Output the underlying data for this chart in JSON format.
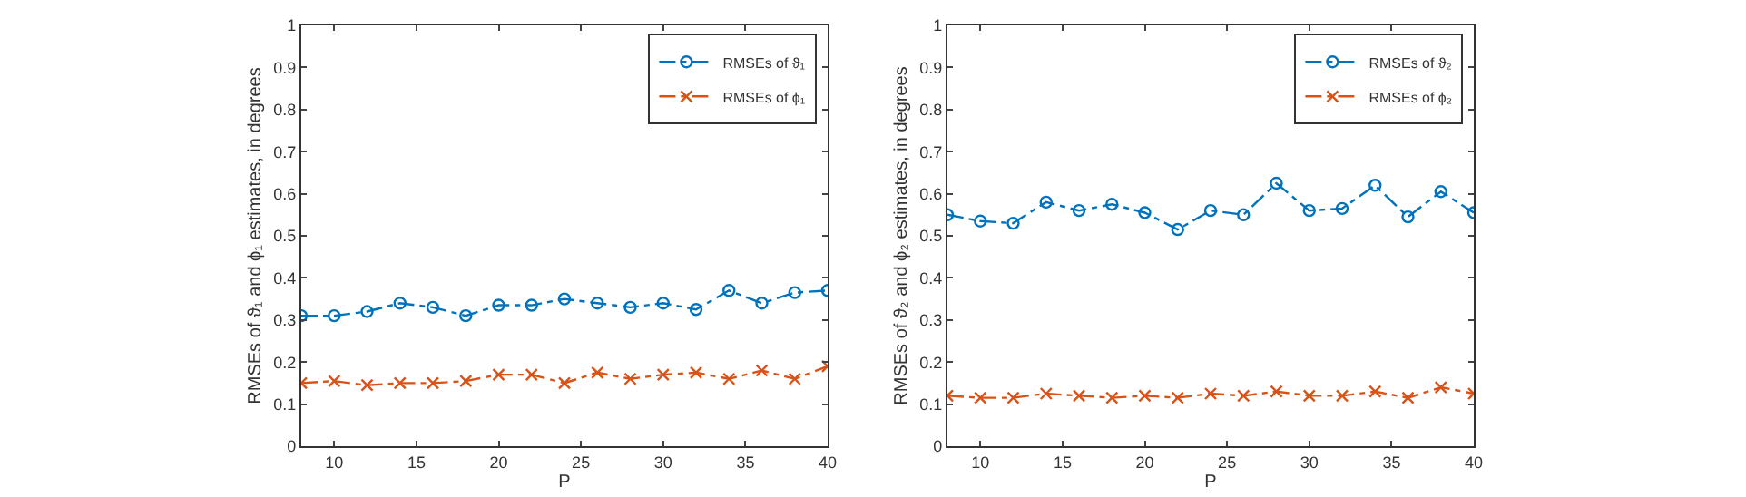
{
  "chart_data": [
    {
      "type": "line",
      "xlabel": "P",
      "ylabel": "RMSEs of ϑ₁ and ϕ₁ estimates, in degrees",
      "x": [
        8,
        10,
        12,
        14,
        16,
        18,
        20,
        22,
        24,
        26,
        28,
        30,
        32,
        34,
        36,
        38,
        40
      ],
      "xlim": [
        8,
        40
      ],
      "xticks": [
        10,
        15,
        20,
        25,
        30,
        35,
        40
      ],
      "ylim": [
        0,
        1
      ],
      "yticks": [
        0,
        0.1,
        0.2,
        0.3,
        0.4,
        0.5,
        0.6,
        0.7,
        0.8,
        0.9,
        1
      ],
      "grid": false,
      "legend": "top right",
      "line_style": "dashdot",
      "series": [
        {
          "name": "RMSEs of ϑ₁",
          "color": "#0072bd",
          "marker": "circle",
          "values": [
            0.31,
            0.31,
            0.32,
            0.34,
            0.33,
            0.31,
            0.335,
            0.335,
            0.35,
            0.34,
            0.33,
            0.34,
            0.325,
            0.37,
            0.34,
            0.365,
            0.37
          ]
        },
        {
          "name": "RMSEs of ϕ₁",
          "color": "#d95319",
          "marker": "cross",
          "values": [
            0.15,
            0.155,
            0.145,
            0.15,
            0.15,
            0.155,
            0.17,
            0.17,
            0.15,
            0.175,
            0.16,
            0.17,
            0.175,
            0.16,
            0.18,
            0.16,
            0.19
          ]
        }
      ]
    },
    {
      "type": "line",
      "xlabel": "P",
      "ylabel": "RMSEs of ϑ₂ and ϕ₂ estimates, in degrees",
      "x": [
        8,
        10,
        12,
        14,
        16,
        18,
        20,
        22,
        24,
        26,
        28,
        30,
        32,
        34,
        36,
        38,
        40
      ],
      "xlim": [
        8,
        40
      ],
      "xticks": [
        10,
        15,
        20,
        25,
        30,
        35,
        40
      ],
      "ylim": [
        0,
        1
      ],
      "yticks": [
        0,
        0.1,
        0.2,
        0.3,
        0.4,
        0.5,
        0.6,
        0.7,
        0.8,
        0.9,
        1
      ],
      "grid": false,
      "legend": "top right",
      "line_style": "dashdot",
      "series": [
        {
          "name": "RMSEs of ϑ₂",
          "color": "#0072bd",
          "marker": "circle",
          "values": [
            0.55,
            0.535,
            0.53,
            0.58,
            0.56,
            0.575,
            0.555,
            0.515,
            0.56,
            0.55,
            0.625,
            0.56,
            0.565,
            0.62,
            0.545,
            0.605,
            0.555
          ]
        },
        {
          "name": "RMSEs of ϕ₂",
          "color": "#d95319",
          "marker": "cross",
          "values": [
            0.12,
            0.115,
            0.115,
            0.125,
            0.12,
            0.115,
            0.12,
            0.115,
            0.125,
            0.12,
            0.13,
            0.12,
            0.12,
            0.13,
            0.115,
            0.14,
            0.125
          ]
        }
      ]
    }
  ]
}
